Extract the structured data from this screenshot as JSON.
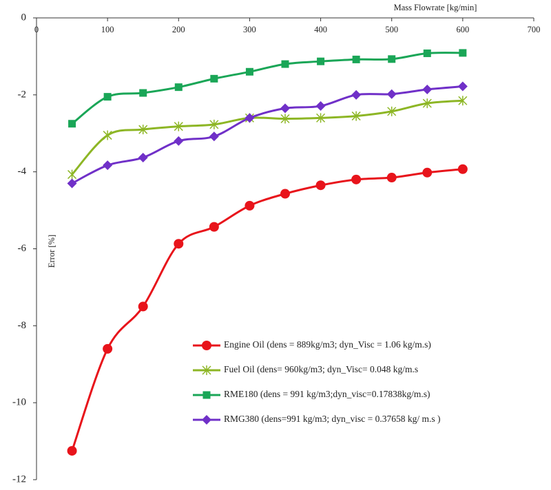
{
  "chart_data": {
    "type": "line",
    "xlabel": "Mass Flowrate [kg/min]",
    "ylabel": "Error [%]",
    "x": [
      50,
      100,
      150,
      200,
      250,
      300,
      350,
      400,
      450,
      500,
      550,
      600
    ],
    "xlim": [
      0,
      700
    ],
    "xticks": [
      0,
      100,
      200,
      300,
      400,
      500,
      600,
      700
    ],
    "ylim": [
      -12,
      0
    ],
    "yticks": [
      -12,
      -10,
      -8,
      -6,
      -4,
      -2,
      0
    ],
    "legend": "lower right",
    "grid": false,
    "series": [
      {
        "name": "Engine Oil (dens = 889kg/m3; dyn_Visc = 1.06 kg/m.s)",
        "color": "#e8141b",
        "marker": "circle",
        "values": [
          -11.25,
          -8.6,
          -7.5,
          -5.87,
          -5.43,
          -4.88,
          -4.57,
          -4.35,
          -4.2,
          -4.15,
          -4.02,
          -3.93
        ]
      },
      {
        "name": "Fuel Oil (dens= 960kg/m3; dyn_Visc= 0.048 kg/m.s",
        "color": "#8db625",
        "marker": "star",
        "values": [
          -4.07,
          -3.05,
          -2.9,
          -2.82,
          -2.77,
          -2.6,
          -2.62,
          -2.6,
          -2.55,
          -2.43,
          -2.22,
          -2.15
        ]
      },
      {
        "name": "RME180 (dens = 991 kg/m3;dyn_visc=0.17838kg/m.s)",
        "color": "#1aa657",
        "marker": "square",
        "values": [
          -2.75,
          -2.05,
          -1.95,
          -1.8,
          -1.58,
          -1.4,
          -1.2,
          -1.13,
          -1.08,
          -1.07,
          -0.92,
          -0.91
        ]
      },
      {
        "name": "RMG380 (dens=991 kg/m3; dyn_visc = 0.37658 kg/ m.s )",
        "color": "#7030c8",
        "marker": "diamond",
        "values": [
          -4.3,
          -3.83,
          -3.63,
          -3.2,
          -3.08,
          -2.6,
          -2.35,
          -2.29,
          -2.0,
          -1.98,
          -1.86,
          -1.78
        ]
      }
    ]
  }
}
